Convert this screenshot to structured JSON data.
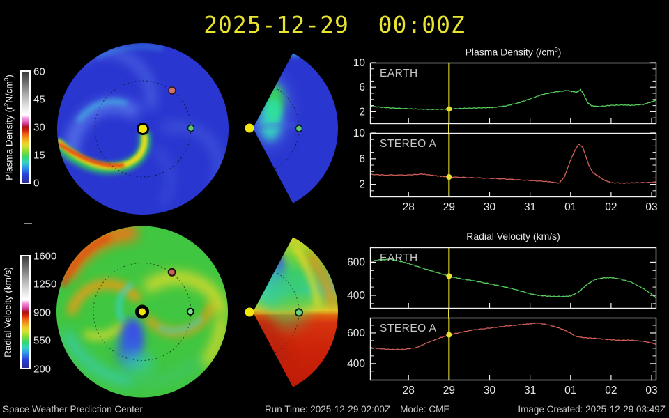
{
  "title": "2025-12-29  00:00Z",
  "colorbars": [
    {
      "label_parts": [
        "Plasma Density (r",
        "2",
        "N/cm",
        "3",
        ")"
      ],
      "ticks": [
        "60",
        "45",
        "30",
        "15",
        "0"
      ]
    },
    {
      "label": "Radial Velocity (km/s)",
      "ticks": [
        "1600",
        "1250",
        "900",
        "550",
        "200"
      ]
    }
  ],
  "groups": [
    {
      "title_parts": [
        "Plasma Density (/cm",
        "3",
        ")"
      ],
      "panels": [
        {
          "label": "EARTH"
        },
        {
          "label": "STEREO A"
        }
      ]
    },
    {
      "title": "Radial Velocity (km/s)",
      "panels": [
        {
          "label": "EARTH"
        },
        {
          "label": "STEREO A"
        }
      ]
    }
  ],
  "footer": {
    "left": "Space Weather Prediction Center",
    "run_time": "Run Time: 2025-12-29 02:00Z",
    "mode": "Mode: CME",
    "created": "Image Created: 2025-12-29 03:49Z"
  },
  "colors": {
    "accent_yellow": "#e8e32a",
    "earth_line": "#57d05e",
    "stereo_line": "#cf5f58",
    "axis": "#f0f0f0",
    "text": "#e8e8e8",
    "density_base_blue": "#2a36d0",
    "velocity_base_green": "#41c641"
  },
  "chart_data": [
    {
      "type": "line",
      "id": "earth-density",
      "station": "EARTH",
      "quantity": "Plasma Density (/cm3)",
      "color": "#57d05e",
      "noise": 0.05,
      "show_xlabels": false,
      "now_x": 29,
      "marker": [
        29,
        2.45
      ],
      "xlim": [
        27.05,
        34.12
      ],
      "ylim": [
        0,
        10
      ],
      "yticks_major": [
        {
          "v": 2,
          "label": "2"
        },
        {
          "v": 6,
          "label": "6"
        },
        {
          "v": 10,
          "label": "10"
        }
      ],
      "yticks_minor": [
        1,
        3,
        4,
        5,
        7,
        8,
        9
      ],
      "xticks": [
        {
          "v": 28,
          "label": "28"
        },
        {
          "v": 29,
          "label": "29"
        },
        {
          "v": 30,
          "label": "30"
        },
        {
          "v": 31,
          "label": "31"
        },
        {
          "v": 32,
          "label": "01"
        },
        {
          "v": 33,
          "label": "02"
        },
        {
          "v": 34,
          "label": "03"
        }
      ],
      "x": [
        27.05,
        27.3,
        27.6,
        28.0,
        28.3,
        28.6,
        28.9,
        29.0,
        29.3,
        29.6,
        29.9,
        30.1,
        30.4,
        30.7,
        31.0,
        31.3,
        31.6,
        31.9,
        32.05,
        32.15,
        32.25,
        32.32,
        32.42,
        32.52,
        32.7,
        33.0,
        33.3,
        33.5,
        33.8,
        34.0,
        34.12
      ],
      "y": [
        2.9,
        2.75,
        2.6,
        2.5,
        2.42,
        2.38,
        2.42,
        2.45,
        2.55,
        2.6,
        2.65,
        2.7,
        2.95,
        3.4,
        4.1,
        4.8,
        5.2,
        5.45,
        5.3,
        5.2,
        5.55,
        4.9,
        3.5,
        2.95,
        2.85,
        3.05,
        3.1,
        3.05,
        3.2,
        3.6,
        3.9
      ]
    },
    {
      "type": "line",
      "id": "stereoa-density",
      "station": "STEREO A",
      "quantity": "Plasma Density (/cm3)",
      "color": "#cf5f58",
      "noise": 0.05,
      "show_xlabels": true,
      "now_x": 29,
      "marker": [
        29,
        3.15
      ],
      "xlim": [
        27.05,
        34.12
      ],
      "ylim": [
        0,
        10
      ],
      "yticks_major": [
        {
          "v": 2,
          "label": "2"
        },
        {
          "v": 6,
          "label": "6"
        },
        {
          "v": 10,
          "label": "10"
        }
      ],
      "yticks_minor": [
        1,
        3,
        4,
        5,
        7,
        8,
        9
      ],
      "xticks": [
        {
          "v": 28,
          "label": "28"
        },
        {
          "v": 29,
          "label": "29"
        },
        {
          "v": 30,
          "label": "30"
        },
        {
          "v": 31,
          "label": "31"
        },
        {
          "v": 32,
          "label": "01"
        },
        {
          "v": 33,
          "label": "02"
        },
        {
          "v": 34,
          "label": "03"
        }
      ],
      "x": [
        27.05,
        27.4,
        28.0,
        28.35,
        28.6,
        28.8,
        29.0,
        29.5,
        30.0,
        30.5,
        31.0,
        31.4,
        31.6,
        31.72,
        31.85,
        32.0,
        32.1,
        32.2,
        32.3,
        32.45,
        32.55,
        32.7,
        32.82,
        33.0,
        33.3,
        33.6,
        34.0,
        34.12
      ],
      "y": [
        3.55,
        3.45,
        3.45,
        3.6,
        3.4,
        3.25,
        3.15,
        3.05,
        2.95,
        2.8,
        2.6,
        2.45,
        2.3,
        2.2,
        3.2,
        5.8,
        7.2,
        8.3,
        7.8,
        5.0,
        3.8,
        3.2,
        2.7,
        2.25,
        2.2,
        2.25,
        2.3,
        2.4
      ]
    },
    {
      "type": "line",
      "id": "earth-velocity",
      "station": "EARTH",
      "quantity": "Radial Velocity (km/s)",
      "color": "#57d05e",
      "noise": 2,
      "show_xlabels": false,
      "now_x": 29,
      "marker": [
        29,
        516
      ],
      "xlim": [
        27.05,
        34.12
      ],
      "ylim": [
        320,
        690
      ],
      "yticks_major": [
        {
          "v": 400,
          "label": "400"
        },
        {
          "v": 600,
          "label": "600"
        }
      ],
      "yticks_minor": [
        350,
        450,
        500,
        550,
        650
      ],
      "xticks": [
        {
          "v": 28,
          "label": "28"
        },
        {
          "v": 29,
          "label": "29"
        },
        {
          "v": 30,
          "label": "30"
        },
        {
          "v": 31,
          "label": "31"
        },
        {
          "v": 32,
          "label": "01"
        },
        {
          "v": 33,
          "label": "02"
        },
        {
          "v": 34,
          "label": "03"
        }
      ],
      "x": [
        27.05,
        27.3,
        27.55,
        27.8,
        28.0,
        28.3,
        28.6,
        29.0,
        29.3,
        29.6,
        30.0,
        30.3,
        30.6,
        31.0,
        31.2,
        31.5,
        31.8,
        32.0,
        32.2,
        32.4,
        32.6,
        32.8,
        33.0,
        33.2,
        33.5,
        33.8,
        34.0,
        34.12
      ],
      "y": [
        605,
        615,
        618,
        605,
        592,
        568,
        545,
        516,
        500,
        488,
        470,
        455,
        438,
        410,
        400,
        394,
        393,
        396,
        420,
        465,
        495,
        505,
        507,
        500,
        480,
        440,
        408,
        383
      ]
    },
    {
      "type": "line",
      "id": "stereoa-velocity",
      "station": "STEREO A",
      "quantity": "Radial Velocity (km/s)",
      "color": "#cf5f58",
      "noise": 2,
      "show_xlabels": true,
      "now_x": 29,
      "marker": [
        29,
        588
      ],
      "xlim": [
        27.05,
        34.12
      ],
      "ylim": [
        290,
        700
      ],
      "yticks_major": [
        {
          "v": 400,
          "label": "400"
        },
        {
          "v": 600,
          "label": "600"
        }
      ],
      "yticks_minor": [
        350,
        450,
        500,
        550,
        650
      ],
      "xticks": [
        {
          "v": 28,
          "label": "28"
        },
        {
          "v": 29,
          "label": "29"
        },
        {
          "v": 30,
          "label": "30"
        },
        {
          "v": 31,
          "label": "31"
        },
        {
          "v": 32,
          "label": "01"
        },
        {
          "v": 33,
          "label": "02"
        },
        {
          "v": 34,
          "label": "03"
        }
      ],
      "x": [
        27.05,
        27.3,
        27.6,
        27.9,
        28.2,
        28.5,
        28.8,
        29.0,
        29.3,
        29.6,
        30.0,
        30.4,
        30.8,
        31.0,
        31.2,
        31.5,
        31.8,
        32.0,
        32.1,
        32.3,
        32.6,
        32.9,
        33.2,
        33.5,
        33.8,
        34.0,
        34.12
      ],
      "y": [
        505,
        497,
        492,
        493,
        505,
        540,
        570,
        588,
        605,
        620,
        632,
        645,
        655,
        660,
        665,
        650,
        625,
        600,
        580,
        570,
        565,
        558,
        552,
        553,
        545,
        535,
        525
      ]
    },
    {
      "type": "heatmap",
      "id": "density-polar-map",
      "title": "Plasma Density, ecliptic plane polar view",
      "colorbar_label": "Plasma Density (r2N/cm3)",
      "colorbar_range": [
        0,
        60
      ],
      "extent_au": 1.7,
      "orbit_au": 1.0,
      "markers": [
        {
          "name": "Sun",
          "r_au": 0,
          "angle_deg": 0
        },
        {
          "name": "Earth",
          "r_au": 1.0,
          "angle_deg": 0
        },
        {
          "name": "STEREO A",
          "r_au": 1.0,
          "angle_deg": 53
        }
      ],
      "features": "blue ambient wind with bright green-yellow-red spiral density stream from Sun toward lower-left, faint cyan spiral arms"
    },
    {
      "type": "heatmap",
      "id": "density-meridional-wedge",
      "title": "Plasma Density, meridional slice toward Earth",
      "colorbar_label": "Plasma Density (r2N/cm3)",
      "colorbar_range": [
        0,
        60
      ],
      "extent_au": 1.7,
      "orbit_au": 1.0,
      "markers": [
        {
          "name": "Sun"
        },
        {
          "name": "Earth"
        }
      ],
      "features": "mostly blue with cyan-green enhancement north-west of Sun inside 1 AU"
    },
    {
      "type": "heatmap",
      "id": "velocity-polar-map",
      "title": "Radial Velocity, ecliptic plane polar view",
      "colorbar_label": "Radial Velocity (km/s)",
      "colorbar_range": [
        200,
        1600
      ],
      "extent_au": 1.7,
      "orbit_au": 1.0,
      "markers": [
        {
          "name": "Sun",
          "r_au": 0,
          "angle_deg": 0
        },
        {
          "name": "Earth",
          "r_au": 1.0,
          "angle_deg": 0
        },
        {
          "name": "STEREO A",
          "r_au": 1.0,
          "angle_deg": 53
        }
      ],
      "features": "green-yellow pinwheel of wind streams, orange-red fast stream at upper-left rim, blue-cyan slow sector south-west of Sun"
    },
    {
      "type": "heatmap",
      "id": "velocity-meridional-wedge",
      "title": "Radial Velocity, meridional slice toward Earth",
      "colorbar_label": "Radial Velocity (km/s)",
      "colorbar_range": [
        200,
        1600
      ],
      "extent_au": 1.7,
      "orbit_au": 1.0,
      "markers": [
        {
          "name": "Sun"
        },
        {
          "name": "Earth"
        }
      ],
      "features": "fast red wind in southern half, green-yellow north with blue slow blob north-west of Sun"
    }
  ]
}
